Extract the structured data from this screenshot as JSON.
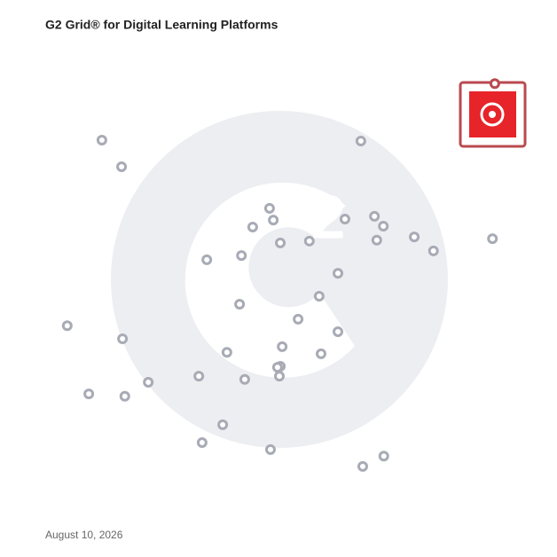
{
  "chart_data": {
    "type": "scatter",
    "title": "G2 Grid® for Digital Learning Platforms",
    "footnote": "August 10, 2026",
    "xlim": [
      0,
      100
    ],
    "ylim": [
      0,
      100
    ],
    "series": [
      {
        "color": "#a8abb5",
        "x": [
          12.1,
          16.3,
          67.4,
          47.9,
          48.7,
          44.3,
          50.2,
          56.4,
          64.0,
          70.3,
          72.2,
          70.8,
          78.8,
          82.9,
          95.5,
          34.5,
          41.9,
          62.5,
          58.5,
          41.5,
          54.0,
          62.5,
          4.7,
          16.5,
          50.6,
          38.8,
          58.9,
          50.2,
          49.6,
          32.8,
          42.6,
          50.0,
          22.0,
          9.3,
          17.0,
          37.9,
          33.5,
          48.1,
          67.8,
          72.3
        ],
        "y": [
          79.7,
          74.0,
          79.5,
          65.1,
          62.6,
          61.1,
          57.7,
          58.1,
          62.8,
          63.4,
          61.3,
          58.3,
          59.0,
          56.0,
          58.6,
          54.1,
          55.0,
          51.2,
          46.3,
          44.6,
          41.4,
          38.7,
          40.0,
          37.2,
          35.5,
          34.3,
          34.0,
          31.3,
          31.1,
          29.2,
          28.5,
          29.2,
          27.9,
          25.4,
          24.9,
          18.8,
          15.0,
          13.5,
          9.9,
          12.1
        ]
      },
      {
        "color": "#b94a4f",
        "x": [
          96.0
        ],
        "y": [
          91.8
        ]
      }
    ]
  }
}
